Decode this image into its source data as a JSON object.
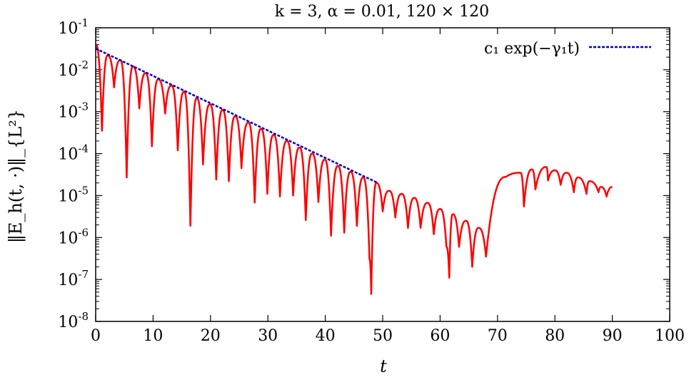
{
  "chart_data": {
    "type": "line",
    "title": "k = 3, α = 0.01, 120 × 120",
    "xlabel": "t",
    "ylabel": "‖E_h(t, ·)‖_{L²}",
    "xlim": [
      0,
      100
    ],
    "ylim": [
      1e-08,
      0.1
    ],
    "yscale": "log",
    "x_ticks": [
      0,
      10,
      20,
      30,
      40,
      50,
      60,
      70,
      80,
      90,
      100
    ],
    "y_ticks": [
      {
        "value": 0.1,
        "exp": "-1"
      },
      {
        "value": 0.01,
        "exp": "-2"
      },
      {
        "value": 0.001,
        "exp": "-3"
      },
      {
        "value": 0.0001,
        "exp": "-4"
      },
      {
        "value": 1e-05,
        "exp": "-5"
      },
      {
        "value": 1e-06,
        "exp": "-6"
      },
      {
        "value": 1e-07,
        "exp": "-7"
      },
      {
        "value": 1e-08,
        "exp": "-8"
      }
    ],
    "legend_position": "top-right",
    "colors": {
      "electric_energy": "#ff0000",
      "fit": "#0000cc"
    },
    "series": [
      {
        "name": "",
        "style": "solid",
        "oscillation_period": 2.23,
        "peaks": [
          [
            0,
            0.04
          ],
          [
            2.1,
            0.022
          ],
          [
            4.3,
            0.017
          ],
          [
            6.5,
            0.012
          ],
          [
            8.7,
            0.0083
          ],
          [
            10.9,
            0.0059
          ],
          [
            13.2,
            0.0042
          ],
          [
            15.4,
            0.003
          ],
          [
            17.6,
            0.0021
          ],
          [
            19.9,
            0.0015
          ],
          [
            22.1,
            0.0011
          ],
          [
            24.3,
            0.00078
          ],
          [
            26.6,
            0.00055
          ],
          [
            28.8,
            0.00039
          ],
          [
            31.0,
            0.00028
          ],
          [
            33.3,
            0.0002
          ],
          [
            35.5,
            0.00014
          ],
          [
            37.7,
            0.0001
          ],
          [
            39.9,
            7.2e-05
          ],
          [
            42.2,
            5.1e-05
          ],
          [
            44.4,
            3.7e-05
          ],
          [
            46.6,
            2.7e-05
          ],
          [
            48.9,
            2e-05
          ],
          [
            51.1,
            1.3e-05
          ],
          [
            53.3,
            1.1e-05
          ],
          [
            55.5,
            8.8e-06
          ],
          [
            57.8,
            6.7e-06
          ],
          [
            60.0,
            4.8e-06
          ],
          [
            62.2,
            3.6e-06
          ],
          [
            64.5,
            2.5e-06
          ],
          [
            66.7,
            1.7e-06
          ],
          [
            71.5,
            2.8e-05
          ],
          [
            74.0,
            3.5e-05
          ],
          [
            76.0,
            4.2e-05
          ],
          [
            78.5,
            4.8e-05
          ],
          [
            80.0,
            4e-05
          ],
          [
            82.0,
            3.5e-05
          ],
          [
            84.0,
            2.7e-05
          ],
          [
            86.0,
            2.2e-05
          ],
          [
            88.0,
            1.6e-05
          ],
          [
            90.0,
            1.6e-05
          ]
        ],
        "troughs": [
          [
            1.1,
            0.00035
          ],
          [
            3.2,
            0.0038
          ],
          [
            5.4,
            2.7e-05
          ],
          [
            7.6,
            0.0012
          ],
          [
            9.8,
            0.00015
          ],
          [
            12.1,
            0.0009
          ],
          [
            14.3,
            0.00012
          ],
          [
            16.5,
            1.9e-06
          ],
          [
            18.7,
            5.5e-05
          ],
          [
            21.0,
            2.4e-05
          ],
          [
            23.2,
            2.2e-05
          ],
          [
            25.4,
            4.5e-05
          ],
          [
            27.7,
            6.8e-06
          ],
          [
            29.9,
            1.1e-05
          ],
          [
            32.1,
            9.5e-06
          ],
          [
            34.4,
            1e-05
          ],
          [
            36.6,
            2.6e-06
          ],
          [
            38.8,
            7e-06
          ],
          [
            41.0,
            1.1e-06
          ],
          [
            43.3,
            1.3e-06
          ],
          [
            45.5,
            1.9e-06
          ],
          [
            47.7,
            3e-07
          ],
          [
            48.0,
            4.5e-08
          ],
          [
            50.0,
            4.2e-06
          ],
          [
            52.2,
            3e-06
          ],
          [
            54.4,
            1.7e-06
          ],
          [
            56.6,
            1.7e-06
          ],
          [
            58.9,
            1.2e-06
          ],
          [
            61.1,
            6e-07
          ],
          [
            61.6,
            1.1e-07
          ],
          [
            63.3,
            6e-07
          ],
          [
            65.6,
            2e-07
          ],
          [
            68.0,
            3.5e-07
          ],
          [
            74.6,
            5.5e-06
          ],
          [
            76.6,
            1.4e-05
          ],
          [
            78.8,
            2.3e-05
          ],
          [
            81.0,
            1.8e-05
          ],
          [
            83.3,
            1.2e-05
          ],
          [
            85.5,
            1.1e-05
          ],
          [
            87.6,
            1.2e-05
          ],
          [
            89.0,
            9.5e-06
          ]
        ]
      },
      {
        "name": "c₁ exp(−γ₁t)",
        "style": "dashed",
        "x": [
          0,
          49
        ],
        "y": [
          0.032,
          2.05e-05
        ]
      }
    ]
  }
}
